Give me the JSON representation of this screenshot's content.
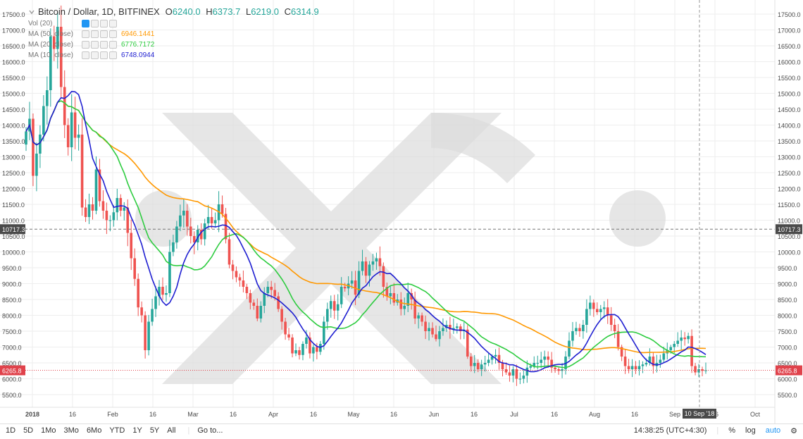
{
  "legend": {
    "symbol": "Bitcoin / Dollar, 1D, BITFINEX",
    "o_label": "O",
    "o_value": "6240.0",
    "h_label": "H",
    "h_value": "6373.7",
    "l_label": "L",
    "l_value": "6219.0",
    "c_label": "C",
    "c_value": "6314.9"
  },
  "indicators": [
    {
      "name": "Vol (20)",
      "value": "",
      "color": "#9e9e9e"
    },
    {
      "name": "MA (50, close)",
      "value": "6946.1441",
      "color": "#ff9800"
    },
    {
      "name": "MA (20, close)",
      "value": "6776.7172",
      "color": "#2ecc40"
    },
    {
      "name": "MA (10, close)",
      "value": "6748.0944",
      "color": "#1f1fd1"
    }
  ],
  "price_axis": {
    "labels": [
      "17500.0",
      "17000.0",
      "16500.0",
      "16000.0",
      "15500.0",
      "15000.0",
      "14500.0",
      "14000.0",
      "13500.0",
      "13000.0",
      "12500.0",
      "12000.0",
      "11500.0",
      "11000.0",
      "10500.0",
      "10000.0",
      "9500.0",
      "9000.0",
      "8500.0",
      "8000.0",
      "7500.0",
      "7000.0",
      "6500.0",
      "6000.0",
      "5500.0"
    ],
    "crosshair_label": "10717.3",
    "current_label": "6265.8"
  },
  "time_axis": {
    "labels": [
      "2018",
      "16",
      "Feb",
      "16",
      "Mar",
      "16",
      "Apr",
      "16",
      "May",
      "16",
      "Jun",
      "16",
      "Jul",
      "16",
      "Aug",
      "16",
      "Sep",
      "16",
      "Oct"
    ],
    "crosshair_label": "10 Sep '18"
  },
  "toolbar": {
    "periods": [
      "1D",
      "5D",
      "1Mo",
      "3Mo",
      "6Mo",
      "YTD",
      "1Y",
      "5Y",
      "All"
    ],
    "goto": "Go to...",
    "clock": "14:38:25 (UTC+4:30)",
    "percent": "%",
    "log": "log",
    "auto": "auto"
  },
  "colors": {
    "up": "#26a69a",
    "down": "#ef5350",
    "ma50": "#ff9800",
    "ma20": "#2ecc40",
    "ma10": "#1f1fd1",
    "current": "#e0424b"
  },
  "chart_data": {
    "type": "candlestick",
    "title": "Bitcoin / Dollar, 1D, BITFINEX",
    "x_range": [
      "2017-12-26",
      "2018-10-10"
    ],
    "ylim": [
      5200,
      17700
    ],
    "current_price": 6265.8,
    "crosshair": {
      "price": 10717.3,
      "date": "10 Sep '18"
    },
    "closes": [
      13800,
      14200,
      12400,
      13100,
      13700,
      14600,
      15100,
      16800,
      16400,
      17100,
      15200,
      14000,
      13300,
      14400,
      13600,
      13700,
      11400,
      11100,
      11500,
      11300,
      12600,
      11600,
      11300,
      11000,
      11000,
      11250,
      11700,
      11300,
      11400,
      10600,
      9800,
      9150,
      8250,
      8000,
      6900,
      7800,
      8200,
      8600,
      8900,
      8650,
      8700,
      10000,
      10300,
      10800,
      11150,
      11300,
      10800,
      10500,
      10300,
      10700,
      10400,
      10900,
      11100,
      10900,
      11000,
      11500,
      11200,
      10400,
      9600,
      9400,
      9200,
      9100,
      8900,
      8700,
      8400,
      8300,
      7900,
      8300,
      8700,
      8900,
      8800,
      8600,
      8200,
      7800,
      7400,
      7300,
      6800,
      6900,
      6750,
      7100,
      7300,
      6800,
      7000,
      6850,
      7100,
      7800,
      8200,
      8450,
      8150,
      8350,
      8900,
      8850,
      9000,
      9100,
      8650,
      9400,
      9700,
      9250,
      9600,
      9700,
      9800,
      9550,
      8900,
      8600,
      8700,
      8400,
      8500,
      8200,
      8300,
      8700,
      8500,
      7900,
      8000,
      7800,
      7500,
      7600,
      7400,
      7250,
      7500,
      7600,
      7700,
      7550,
      7600,
      7650,
      7500,
      7550,
      6700,
      6400,
      6500,
      6300,
      6450,
      6500,
      6600,
      6700,
      6750,
      6500,
      6300,
      6200,
      6100,
      6300,
      6000,
      6000,
      6100,
      6350,
      6400,
      6500,
      6500,
      6600,
      6700,
      6600,
      6350,
      6300,
      6250,
      6300,
      6700,
      7200,
      7500,
      7600,
      7500,
      7700,
      8200,
      8400,
      8200,
      8100,
      8200,
      8250,
      8000,
      7700,
      7500,
      7000,
      6700,
      6400,
      6300,
      6400,
      6300,
      6400,
      6450,
      6500,
      6700,
      6400,
      6500,
      6600,
      6800,
      6900,
      7000,
      7100,
      7200,
      7300,
      7250,
      7350,
      6400,
      6200,
      6300,
      6250,
      6265
    ]
  }
}
